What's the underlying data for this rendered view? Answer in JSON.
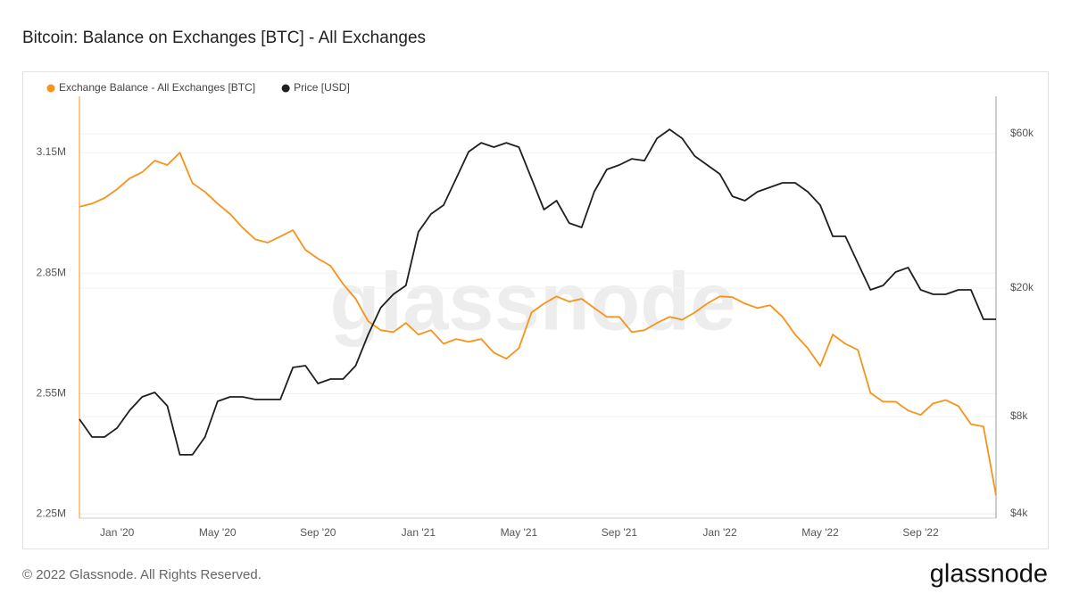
{
  "chart_data": {
    "type": "line",
    "title": "Bitcoin: Balance on Exchanges [BTC] - All Exchanges",
    "watermark": "glassnode",
    "categories": [
      null,
      null,
      null,
      "Jan '20",
      null,
      null,
      null,
      null,
      null,
      null,
      null,
      "May '20",
      null,
      null,
      null,
      null,
      null,
      null,
      null,
      "Sep '20",
      null,
      null,
      null,
      null,
      null,
      null,
      null,
      "Jan '21",
      null,
      null,
      null,
      null,
      null,
      null,
      null,
      "May '21",
      null,
      null,
      null,
      null,
      null,
      null,
      null,
      "Sep '21",
      null,
      null,
      null,
      null,
      null,
      null,
      null,
      "Jan '22",
      null,
      null,
      null,
      null,
      null,
      null,
      null,
      "May '22",
      null,
      null,
      null,
      null,
      null,
      null,
      null,
      "Sep '22",
      null,
      null,
      null,
      null,
      null,
      null
    ],
    "series": [
      {
        "name": "Exchange Balance - All Exchanges [BTC]",
        "color": "#f7931a",
        "values": [
          3015000,
          3023000,
          3037000,
          3059000,
          3086000,
          3101000,
          3130000,
          3119000,
          3150000,
          3074000,
          3052000,
          3023000,
          2997000,
          2963000,
          2934000,
          2926000,
          2941000,
          2957000,
          2908000,
          2886000,
          2868000,
          2823000,
          2786000,
          2730000,
          2708000,
          2703000,
          2726000,
          2697000,
          2708000,
          2674000,
          2686000,
          2679000,
          2686000,
          2652000,
          2637000,
          2663000,
          2752000,
          2774000,
          2792000,
          2779000,
          2786000,
          2763000,
          2741000,
          2741000,
          2703000,
          2708000,
          2726000,
          2741000,
          2734000,
          2752000,
          2774000,
          2792000,
          2790000,
          2774000,
          2763000,
          2770000,
          2741000,
          2697000,
          2663000,
          2619000,
          2697000,
          2674000,
          2659000,
          2552000,
          2530000,
          2530000,
          2508000,
          2497000,
          2526000,
          2534000,
          2519000,
          2474000,
          2468000,
          2297000
        ]
      },
      {
        "name": "Price [USD]",
        "color": "#1f1f1f",
        "axis": "y2",
        "values": [
          7850,
          6910,
          6910,
          7370,
          8360,
          9200,
          9500,
          8630,
          6090,
          6090,
          6910,
          8910,
          9200,
          9200,
          9030,
          9030,
          9030,
          11350,
          11490,
          10120,
          10450,
          10450,
          11490,
          14360,
          17380,
          19110,
          20360,
          29820,
          33870,
          36090,
          43650,
          52840,
          56310,
          54560,
          56310,
          54560,
          43650,
          34960,
          37250,
          31770,
          30790,
          39700,
          46540,
          48050,
          50220,
          49580,
          58130,
          61940,
          58130,
          51190,
          48050,
          45070,
          38450,
          37250,
          39700,
          40990,
          42320,
          42320,
          39700,
          36090,
          28890,
          28890,
          23870,
          19730,
          20360,
          22400,
          23130,
          19730,
          19110,
          19110,
          19730,
          19730,
          16000,
          16000
        ]
      }
    ],
    "ylim": [
      2240000,
      3290000
    ],
    "yticks": [
      {
        "value": 2250000,
        "label": "2.25M"
      },
      {
        "value": 2550000,
        "label": "2.55M"
      },
      {
        "value": 2850000,
        "label": "2.85M"
      },
      {
        "value": 3150000,
        "label": "3.15M"
      }
    ],
    "y2lim": [
      3875,
      78400
    ],
    "y2log": true,
    "y2ticks": [
      {
        "value": 4000,
        "label": "$4k"
      },
      {
        "value": 8000,
        "label": "$8k"
      },
      {
        "value": 20000,
        "label": "$20k"
      },
      {
        "value": 60000,
        "label": "$60k"
      }
    ],
    "grid": true,
    "legend": "top-left"
  },
  "footer": {
    "copyright": "© 2022 Glassnode. All Rights Reserved.",
    "logo": "glassnode"
  }
}
